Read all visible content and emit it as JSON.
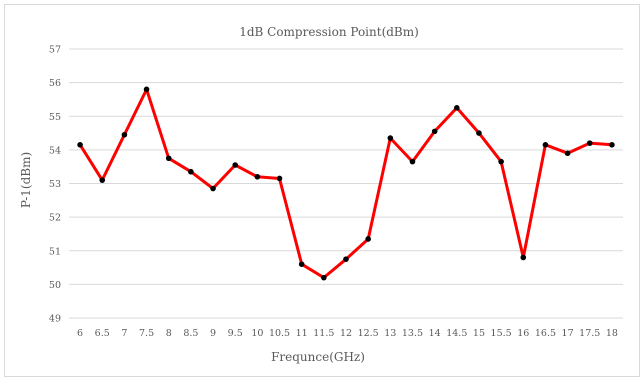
{
  "chart_data": {
    "type": "line",
    "title": "1dB Compression Point(dBm)",
    "xlabel": "Frequnce(GHz)",
    "ylabel": "P-1(dBm)",
    "ylim": [
      49,
      57
    ],
    "y_ticks": [
      "49",
      "50",
      "51",
      "52",
      "53",
      "54",
      "55",
      "56",
      "57"
    ],
    "grid": "horizontal",
    "legend": "none",
    "categories": [
      "6",
      "6.5",
      "7",
      "7.5",
      "8",
      "8.5",
      "9",
      "9.5",
      "10",
      "10.5",
      "11",
      "11.5",
      "12",
      "12.5",
      "13",
      "13.5",
      "14",
      "14.5",
      "15",
      "15.5",
      "16",
      "16.5",
      "17",
      "17.5",
      "18"
    ],
    "series": [
      {
        "values": [
          54.15,
          53.1,
          54.45,
          55.8,
          53.75,
          53.35,
          52.85,
          53.55,
          53.2,
          53.15,
          50.6,
          50.2,
          50.75,
          51.35,
          54.35,
          53.65,
          54.55,
          55.25,
          54.5,
          53.65,
          50.8,
          54.15,
          53.9,
          54.2,
          54.15
        ],
        "color": "#ff0000",
        "marker_color": "#000000"
      }
    ],
    "colors": {
      "line": "#ff0000",
      "marker": "#000000",
      "grid": "#d9d9d9",
      "text": "#595959"
    }
  }
}
